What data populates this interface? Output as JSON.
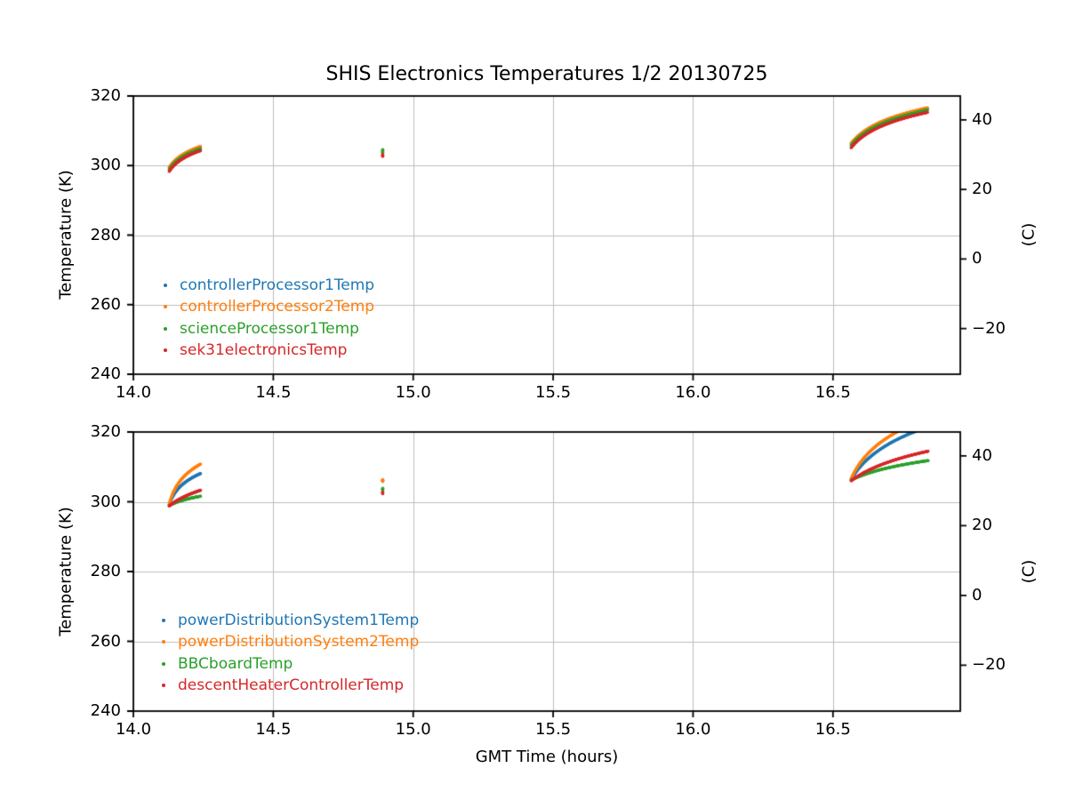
{
  "title": "SHIS Electronics Temperatures 1/2 20130725",
  "xlabel": "GMT Time (hours)",
  "ylabel_left": "Temperature (K)",
  "ylabel_right": "(C)",
  "colors": {
    "blue": "#1f77b4",
    "orange": "#ff7f0e",
    "green": "#2ca02c",
    "red": "#d62728",
    "spine": "#000000",
    "text": "#000000",
    "grid": "#bdbdbd"
  },
  "axes": {
    "xlim": [
      14.0,
      16.955
    ],
    "ylim": [
      240,
      320
    ],
    "xticks": [
      14.0,
      14.5,
      15.0,
      15.5,
      16.0,
      16.5
    ],
    "xtick_labels": [
      "14.0",
      "14.5",
      "15.0",
      "15.5",
      "16.0",
      "16.5"
    ],
    "yticks": [
      240,
      260,
      280,
      300,
      320
    ],
    "ytick_labels": [
      "240",
      "260",
      "280",
      "300",
      "320"
    ],
    "yticks_right_celsius": [
      40,
      20,
      0,
      -20
    ],
    "ytick_labels_right": [
      "40",
      "20",
      "0",
      "−20"
    ],
    "celsius_offset": 273.15,
    "grid": true
  },
  "chart_data": [
    {
      "id": "top",
      "type": "scatter",
      "legend_loc": "lower left",
      "legend": [
        {
          "label": "controllerProcessor1Temp",
          "color": "#1f77b4"
        },
        {
          "label": "controllerProcessor2Temp",
          "color": "#ff7f0e"
        },
        {
          "label": "scienceProcessor1Temp",
          "color": "#2ca02c"
        },
        {
          "label": "sek31electronicsTemp",
          "color": "#d62728"
        }
      ],
      "series": [
        {
          "name": "controllerProcessor1Temp",
          "color": "#1f77b4",
          "r": 1.4,
          "segments": [
            {
              "t0": 14.128,
              "t1": 14.24,
              "T0": 299.3,
              "T1": 305.3,
              "k": 3.5,
              "n": 90
            },
            {
              "t0": 14.891,
              "t1": 14.891,
              "T0": 304.0,
              "T1": 304.3,
              "k": 0,
              "n": 6
            },
            {
              "t0": 16.565,
              "t1": 16.838,
              "T0": 306.1,
              "T1": 316.3,
              "k": 5,
              "n": 170
            }
          ]
        },
        {
          "name": "controllerProcessor2Temp",
          "color": "#ff7f0e",
          "r": 1.7,
          "segments": [
            {
              "t0": 14.128,
              "t1": 14.24,
              "T0": 299.5,
              "T1": 305.5,
              "k": 3.5,
              "n": 90
            },
            {
              "t0": 14.891,
              "t1": 14.891,
              "T0": 303.5,
              "T1": 303.9,
              "k": 0,
              "n": 6
            },
            {
              "t0": 16.565,
              "t1": 16.838,
              "T0": 306.4,
              "T1": 316.6,
              "k": 5,
              "n": 170
            }
          ]
        },
        {
          "name": "scienceProcessor1Temp",
          "color": "#2ca02c",
          "r": 1.7,
          "segments": [
            {
              "t0": 14.128,
              "t1": 14.24,
              "T0": 298.9,
              "T1": 304.9,
              "k": 3.5,
              "n": 90
            },
            {
              "t0": 14.891,
              "t1": 14.891,
              "T0": 303.9,
              "T1": 304.6,
              "k": 0,
              "n": 6
            },
            {
              "t0": 16.565,
              "t1": 16.838,
              "T0": 305.8,
              "T1": 316.0,
              "k": 5,
              "n": 170
            }
          ]
        },
        {
          "name": "sek31electronicsTemp",
          "color": "#d62728",
          "r": 1.7,
          "segments": [
            {
              "t0": 14.128,
              "t1": 14.24,
              "T0": 298.3,
              "T1": 304.3,
              "k": 3.5,
              "n": 90
            },
            {
              "t0": 14.891,
              "t1": 14.891,
              "T0": 302.6,
              "T1": 303.2,
              "k": 0,
              "n": 6
            },
            {
              "t0": 16.565,
              "t1": 16.838,
              "T0": 305.1,
              "T1": 315.3,
              "k": 5,
              "n": 170
            }
          ]
        }
      ]
    },
    {
      "id": "bottom",
      "type": "scatter",
      "legend_loc": "lower left",
      "legend": [
        {
          "label": "powerDistributionSystem1Temp",
          "color": "#1f77b4"
        },
        {
          "label": "powerDistributionSystem2Temp",
          "color": "#ff7f0e"
        },
        {
          "label": "BBCboardTemp",
          "color": "#2ca02c"
        },
        {
          "label": "descentHeaterControllerTemp",
          "color": "#d62728"
        }
      ],
      "series": [
        {
          "name": "powerDistributionSystem1Temp",
          "color": "#1f77b4",
          "r": 1.7,
          "segments": [
            {
              "t0": 14.128,
              "t1": 14.24,
              "T0": 299.1,
              "T1": 308.1,
              "k": 6,
              "n": 110
            },
            {
              "t0": 14.891,
              "t1": 14.891,
              "T0": 306.0,
              "T1": 306.2,
              "k": 0,
              "n": 5
            },
            {
              "t0": 16.565,
              "t1": 16.84,
              "T0": 306.4,
              "T1": 321.5,
              "k": 4,
              "n": 190
            }
          ]
        },
        {
          "name": "powerDistributionSystem2Temp",
          "color": "#ff7f0e",
          "r": 1.7,
          "segments": [
            {
              "t0": 14.128,
              "t1": 14.24,
              "T0": 299.3,
              "T1": 310.8,
              "k": 6,
              "n": 110
            },
            {
              "t0": 14.891,
              "t1": 14.891,
              "T0": 305.8,
              "T1": 306.4,
              "k": 0,
              "n": 6
            },
            {
              "t0": 16.565,
              "t1": 16.84,
              "T0": 306.7,
              "T1": 324.0,
              "k": 5,
              "n": 190
            }
          ]
        },
        {
          "name": "BBCboardTemp",
          "color": "#2ca02c",
          "r": 1.7,
          "segments": [
            {
              "t0": 14.128,
              "t1": 14.24,
              "T0": 298.9,
              "T1": 301.6,
              "k": 2,
              "n": 110
            },
            {
              "t0": 14.891,
              "t1": 14.891,
              "T0": 303.4,
              "T1": 303.9,
              "k": 0,
              "n": 6
            },
            {
              "t0": 16.565,
              "t1": 16.84,
              "T0": 306.2,
              "T1": 311.8,
              "k": 2.5,
              "n": 190
            }
          ]
        },
        {
          "name": "descentHeaterControllerTemp",
          "color": "#d62728",
          "r": 1.7,
          "segments": [
            {
              "t0": 14.128,
              "t1": 14.24,
              "T0": 298.8,
              "T1": 303.3,
              "k": 1.5,
              "n": 110
            },
            {
              "t0": 14.891,
              "t1": 14.891,
              "T0": 302.3,
              "T1": 302.8,
              "k": 0,
              "n": 6
            },
            {
              "t0": 16.565,
              "t1": 16.84,
              "T0": 306.0,
              "T1": 314.5,
              "k": 2.5,
              "n": 190
            }
          ]
        }
      ]
    }
  ]
}
